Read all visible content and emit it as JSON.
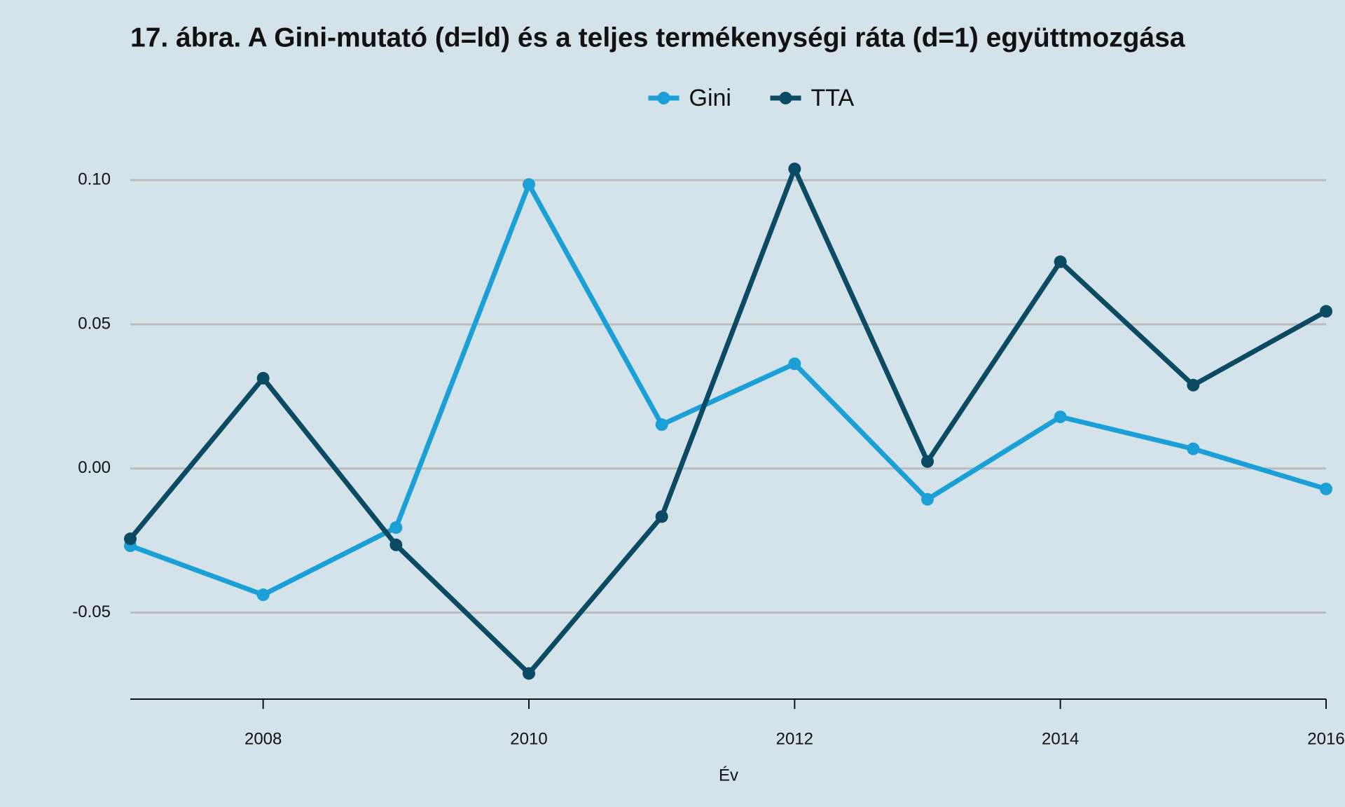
{
  "chart_data": {
    "type": "line",
    "title": "17. ábra. A Gini-mutató (d=ld) és a teljes termékenységi ráta (d=1) együttmozgása",
    "x_label": "Év",
    "x": [
      2007,
      2008,
      2009,
      2010,
      2011,
      2012,
      2013,
      2014,
      2015,
      2016
    ],
    "series": [
      {
        "name": "Gini",
        "color": "#1a9fd6",
        "values": [
          -0.0268,
          -0.0438,
          -0.0205,
          0.0985,
          0.0152,
          0.0363,
          -0.0107,
          0.0179,
          0.0068,
          -0.0071
        ]
      },
      {
        "name": "TTA",
        "color": "#0b4a63",
        "values": [
          -0.0244,
          0.0313,
          -0.0265,
          -0.0711,
          -0.0167,
          0.1039,
          0.0024,
          0.0717,
          0.0289,
          0.0545
        ]
      }
    ],
    "xlim": [
      2007,
      2016
    ],
    "xticks": [
      2008,
      2010,
      2012,
      2014,
      2016
    ],
    "ylim": [
      -0.08,
      0.11
    ],
    "yticks": [
      {
        "value": -0.05,
        "label": "-0.05"
      },
      {
        "value": 0,
        "label": "0.00"
      },
      {
        "value": 0.05,
        "label": "0.05"
      },
      {
        "value": 0.1,
        "label": "0.10"
      }
    ],
    "grid": true,
    "legend": "top"
  }
}
